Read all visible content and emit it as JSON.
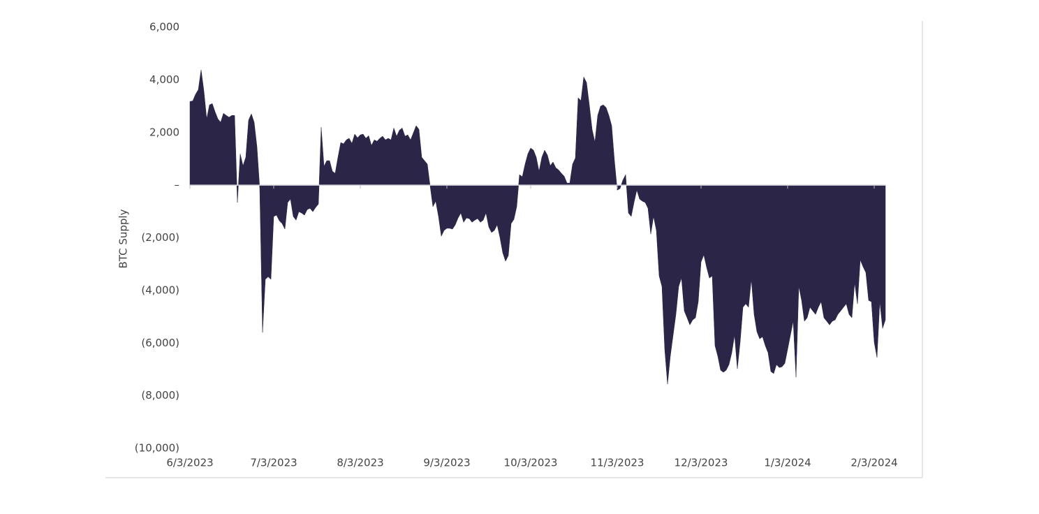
{
  "chart_data": {
    "type": "area",
    "y_label": "BTC Supply",
    "color": "#2b2548",
    "ylim": [
      -10000,
      6000
    ],
    "yticks": [
      {
        "value": 6000,
        "label": "6,000"
      },
      {
        "value": 4000,
        "label": "4,000"
      },
      {
        "value": 2000,
        "label": "2,000"
      },
      {
        "value": 0,
        "label": "–"
      },
      {
        "value": -2000,
        "label": "(2,000)"
      },
      {
        "value": -4000,
        "label": "(4,000)"
      },
      {
        "value": -6000,
        "label": "(6,000)"
      },
      {
        "value": -8000,
        "label": "(8,000)"
      },
      {
        "value": -10000,
        "label": "(10,000)"
      }
    ],
    "xlim": [
      "6/3/2023",
      "2/7/2024"
    ],
    "xticks": [
      "6/3/2023",
      "7/3/2023",
      "8/3/2023",
      "9/3/2023",
      "10/3/2023",
      "11/3/2023",
      "12/3/2023",
      "1/3/2024",
      "2/3/2024"
    ],
    "x": [
      "6/3/2023",
      "6/4/2023",
      "6/5/2023",
      "6/6/2023",
      "6/7/2023",
      "6/8/2023",
      "6/9/2023",
      "6/10/2023",
      "6/11/2023",
      "6/12/2023",
      "6/13/2023",
      "6/14/2023",
      "6/15/2023",
      "6/16/2023",
      "6/17/2023",
      "6/18/2023",
      "6/19/2023",
      "6/20/2023",
      "6/21/2023",
      "6/22/2023",
      "6/23/2023",
      "6/24/2023",
      "6/25/2023",
      "6/26/2023",
      "6/27/2023",
      "6/28/2023",
      "6/29/2023",
      "6/30/2023",
      "7/1/2023",
      "7/2/2023",
      "7/3/2023",
      "7/4/2023",
      "7/5/2023",
      "7/6/2023",
      "7/7/2023",
      "7/8/2023",
      "7/9/2023",
      "7/10/2023",
      "7/11/2023",
      "7/12/2023",
      "7/13/2023",
      "7/14/2023",
      "7/15/2023",
      "7/16/2023",
      "7/17/2023",
      "7/18/2023",
      "7/19/2023",
      "7/20/2023",
      "7/21/2023",
      "7/22/2023",
      "7/23/2023",
      "7/24/2023",
      "7/25/2023",
      "7/26/2023",
      "7/27/2023",
      "7/28/2023",
      "7/29/2023",
      "7/30/2023",
      "7/31/2023",
      "8/1/2023",
      "8/2/2023",
      "8/3/2023",
      "8/4/2023",
      "8/5/2023",
      "8/6/2023",
      "8/7/2023",
      "8/8/2023",
      "8/9/2023",
      "8/10/2023",
      "8/11/2023",
      "8/12/2023",
      "8/13/2023",
      "8/14/2023",
      "8/15/2023",
      "8/16/2023",
      "8/17/2023",
      "8/18/2023",
      "8/19/2023",
      "8/20/2023",
      "8/21/2023",
      "8/22/2023",
      "8/23/2023",
      "8/24/2023",
      "8/25/2023",
      "8/26/2023",
      "8/27/2023",
      "8/28/2023",
      "8/29/2023",
      "8/30/2023",
      "8/31/2023",
      "9/1/2023",
      "9/2/2023",
      "9/3/2023",
      "9/4/2023",
      "9/5/2023",
      "9/6/2023",
      "9/7/2023",
      "9/8/2023",
      "9/9/2023",
      "9/10/2023",
      "9/11/2023",
      "9/12/2023",
      "9/13/2023",
      "9/14/2023",
      "9/15/2023",
      "9/16/2023",
      "9/17/2023",
      "9/18/2023",
      "9/19/2023",
      "9/20/2023",
      "9/21/2023",
      "9/22/2023",
      "9/23/2023",
      "9/24/2023",
      "9/25/2023",
      "9/26/2023",
      "9/27/2023",
      "9/28/2023",
      "9/29/2023",
      "9/30/2023",
      "10/1/2023",
      "10/2/2023",
      "10/3/2023",
      "10/4/2023",
      "10/5/2023",
      "10/6/2023",
      "10/7/2023",
      "10/8/2023",
      "10/9/2023",
      "10/10/2023",
      "10/11/2023",
      "10/12/2023",
      "10/13/2023",
      "10/14/2023",
      "10/15/2023",
      "10/16/2023",
      "10/17/2023",
      "10/18/2023",
      "10/19/2023",
      "10/20/2023",
      "10/21/2023",
      "10/22/2023",
      "10/23/2023",
      "10/24/2023",
      "10/25/2023",
      "10/26/2023",
      "10/27/2023",
      "10/28/2023",
      "10/29/2023",
      "10/30/2023",
      "10/31/2023",
      "11/1/2023",
      "11/2/2023",
      "11/3/2023",
      "11/4/2023",
      "11/5/2023",
      "11/6/2023",
      "11/7/2023",
      "11/8/2023",
      "11/9/2023",
      "11/10/2023",
      "11/11/2023",
      "11/12/2023",
      "11/13/2023",
      "11/14/2023",
      "11/15/2023",
      "11/16/2023",
      "11/17/2023",
      "11/18/2023",
      "11/19/2023",
      "11/20/2023",
      "11/21/2023",
      "11/22/2023",
      "11/23/2023",
      "11/24/2023",
      "11/25/2023",
      "11/26/2023",
      "11/27/2023",
      "11/28/2023",
      "11/29/2023",
      "11/30/2023",
      "12/1/2023",
      "12/2/2023",
      "12/3/2023",
      "12/4/2023",
      "12/5/2023",
      "12/6/2023",
      "12/7/2023",
      "12/8/2023",
      "12/9/2023",
      "12/10/2023",
      "12/11/2023",
      "12/12/2023",
      "12/13/2023",
      "12/14/2023",
      "12/15/2023",
      "12/16/2023",
      "12/17/2023",
      "12/18/2023",
      "12/19/2023",
      "12/20/2023",
      "12/21/2023",
      "12/22/2023",
      "12/23/2023",
      "12/24/2023",
      "12/25/2023",
      "12/26/2023",
      "12/27/2023",
      "12/28/2023",
      "12/29/2023",
      "12/30/2023",
      "12/31/2023",
      "1/1/2024",
      "1/2/2024",
      "1/3/2024",
      "1/4/2024",
      "1/5/2024",
      "1/6/2024",
      "1/7/2024",
      "1/8/2024",
      "1/9/2024",
      "1/10/2024",
      "1/11/2024",
      "1/12/2024",
      "1/13/2024",
      "1/14/2024",
      "1/15/2024",
      "1/16/2024",
      "1/17/2024",
      "1/18/2024",
      "1/19/2024",
      "1/20/2024",
      "1/21/2024",
      "1/22/2024",
      "1/23/2024",
      "1/24/2024",
      "1/25/2024",
      "1/26/2024",
      "1/27/2024",
      "1/28/2024",
      "1/29/2024",
      "1/30/2024",
      "1/31/2024",
      "2/1/2024",
      "2/2/2024",
      "2/3/2024",
      "2/4/2024",
      "2/5/2024",
      "2/6/2024",
      "2/7/2024"
    ],
    "values": [
      3180,
      3200,
      3450,
      3630,
      4380,
      3580,
      2520,
      3050,
      3100,
      2790,
      2520,
      2390,
      2730,
      2650,
      2580,
      2650,
      2650,
      -660,
      1190,
      740,
      1060,
      2470,
      2710,
      2390,
      1460,
      -130,
      -5600,
      -3580,
      -3480,
      -3580,
      -1190,
      -1140,
      -1350,
      -1460,
      -1670,
      -660,
      -530,
      -1190,
      -1330,
      -1010,
      -1060,
      -1140,
      -930,
      -880,
      -1010,
      -850,
      -720,
      2200,
      720,
      930,
      930,
      530,
      450,
      1060,
      1620,
      1570,
      1720,
      1780,
      1590,
      1940,
      1800,
      1910,
      1940,
      1780,
      1880,
      1510,
      1720,
      1670,
      1780,
      1860,
      1720,
      1780,
      1720,
      2170,
      1860,
      2090,
      2170,
      1860,
      1910,
      1720,
      1990,
      2260,
      2120,
      1060,
      930,
      800,
      -30,
      -820,
      -610,
      -1190,
      -1940,
      -1720,
      -1640,
      -1640,
      -1670,
      -1510,
      -1250,
      -1060,
      -1410,
      -1250,
      -1270,
      -1410,
      -1330,
      -1270,
      -1410,
      -1330,
      -1060,
      -1590,
      -1800,
      -1720,
      -1510,
      -1990,
      -2570,
      -2890,
      -2680,
      -1460,
      -1300,
      -820,
      400,
      320,
      800,
      1190,
      1410,
      1330,
      1060,
      530,
      1060,
      1330,
      1140,
      740,
      880,
      660,
      580,
      450,
      340,
      80,
      80,
      800,
      1030,
      3320,
      3210,
      4110,
      3900,
      3050,
      2120,
      1640,
      2650,
      3000,
      3050,
      2950,
      2650,
      2260,
      930,
      -190,
      -130,
      190,
      400,
      -1060,
      -1190,
      -660,
      -190,
      -530,
      -610,
      -660,
      -880,
      -1860,
      -1190,
      -1720,
      -3450,
      -3850,
      -6240,
      -7560,
      -6500,
      -5700,
      -4910,
      -3850,
      -3530,
      -4780,
      -5040,
      -5310,
      -5120,
      -5040,
      -4430,
      -2920,
      -2650,
      -3130,
      -3530,
      -3450,
      -6100,
      -6500,
      -7030,
      -7110,
      -7030,
      -6820,
      -6370,
      -5700,
      -6980,
      -5970,
      -4640,
      -4510,
      -4640,
      -3580,
      -4910,
      -5570,
      -5840,
      -5760,
      -6100,
      -6370,
      -7080,
      -7160,
      -6820,
      -6930,
      -6900,
      -6770,
      -6240,
      -5700,
      -5170,
      -7300,
      -3850,
      -4380,
      -5170,
      -5040,
      -4640,
      -4780,
      -4910,
      -4640,
      -4430,
      -5040,
      -5170,
      -5310,
      -5170,
      -5120,
      -4910,
      -4780,
      -4640,
      -4510,
      -4910,
      -5040,
      -3710,
      -4510,
      -2840,
      -3100,
      -3320,
      -4380,
      -4430,
      -5970,
      -6550,
      -4430,
      -5440,
      -5120
    ]
  }
}
